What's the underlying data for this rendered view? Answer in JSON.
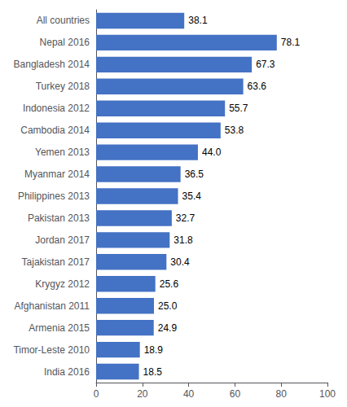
{
  "chart_data": {
    "type": "bar",
    "orientation": "horizontal",
    "categories": [
      "All countries",
      "Nepal 2016",
      "Bangladesh 2014",
      "Turkey 2018",
      "Indonesia 2012",
      "Cambodia 2014",
      "Yemen 2013",
      "Myanmar 2014",
      "Philippines 2013",
      "Pakistan 2013",
      "Jordan 2017",
      "Tajakistan 2017",
      "Krygyz 2012",
      "Afghanistan 2011",
      "Armenia 2015",
      "Timor-Leste 2010",
      "India 2016"
    ],
    "values": [
      38.1,
      78.1,
      67.3,
      63.6,
      55.7,
      53.8,
      44.0,
      36.5,
      35.4,
      32.7,
      31.8,
      30.4,
      25.6,
      25.0,
      24.9,
      18.9,
      18.5
    ],
    "value_labels": [
      "38.1",
      "78.1",
      "67.3",
      "63.6",
      "55.7",
      "53.8",
      "44.0",
      "36.5",
      "35.4",
      "32.7",
      "31.8",
      "30.4",
      "25.6",
      "25.0",
      "24.9",
      "18.9",
      "18.5"
    ],
    "color": "#4472C4",
    "xlim": [
      0,
      100
    ],
    "xticks": [
      0,
      20,
      40,
      60,
      80,
      100
    ],
    "data_labels": true,
    "grid": false
  }
}
